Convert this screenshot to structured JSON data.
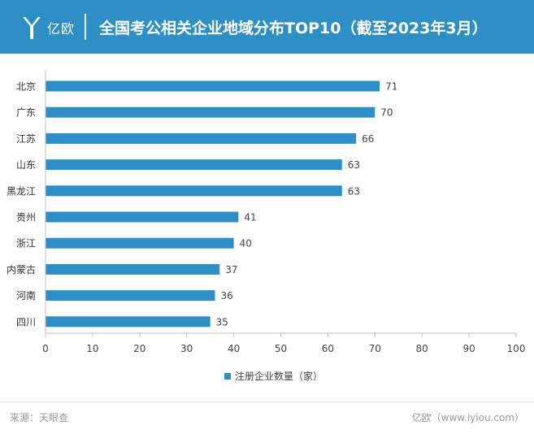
{
  "brand": {
    "name": "亿欧"
  },
  "header": {
    "title": "全国考公相关企业地域分布TOP10（截至2023年3月）"
  },
  "footer": {
    "source": "来源：天眼查",
    "site": "亿欧（www.iyiou.com）"
  },
  "colors": {
    "header_bg": "#2e8fc4",
    "bar": "#2e8fc4"
  },
  "chart_data": {
    "type": "bar",
    "orientation": "horizontal",
    "categories": [
      "北京",
      "广东",
      "江苏",
      "山东",
      "黑龙江",
      "贵州",
      "浙江",
      "内蒙古",
      "河南",
      "四川"
    ],
    "series": [
      {
        "name": "注册企业数量（家）",
        "values": [
          71,
          70,
          66,
          63,
          63,
          41,
          40,
          37,
          36,
          35
        ]
      }
    ],
    "xlim": [
      0,
      100
    ],
    "xticks": [
      0,
      10,
      20,
      30,
      40,
      50,
      60,
      70,
      80,
      90,
      100
    ],
    "grid": false,
    "legend": "bottom-center",
    "data_labels": true
  }
}
